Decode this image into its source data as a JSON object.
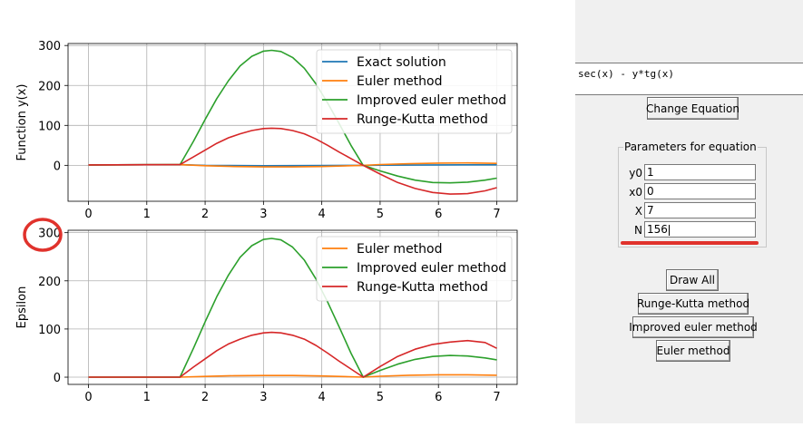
{
  "equation": {
    "text": "sec(x) - y*tg(x)"
  },
  "buttons": {
    "change_equation": "Change Equation",
    "draw_all": "Draw All",
    "runge_kutta": "Runge-Kutta method",
    "improved_euler": "Improved euler method",
    "euler": "Euler method"
  },
  "parameters": {
    "title": "Parameters for equation",
    "fields": [
      {
        "label": "y0",
        "value": "1"
      },
      {
        "label": "x0",
        "value": "0"
      },
      {
        "label": "X",
        "value": "7"
      },
      {
        "label": "N",
        "value": "156"
      }
    ]
  },
  "colors": {
    "exact": "#1f77b4",
    "euler": "#ff7f0e",
    "improved": "#2ca02c",
    "rk": "#d62728",
    "annotation": "#e0322c"
  },
  "chart_data": [
    {
      "type": "line",
      "ylabel": "Function y(x)",
      "xlabel": "",
      "xlim": [
        -0.35,
        7.35
      ],
      "ylim": [
        -90,
        305
      ],
      "xticks": [
        0,
        1,
        2,
        3,
        4,
        5,
        6,
        7
      ],
      "yticks": [
        0,
        100,
        200,
        300
      ],
      "grid": true,
      "legend": "top-right",
      "series": [
        {
          "name": "Exact solution",
          "key": "exact",
          "x": [
            0,
            1,
            1.57,
            2,
            3,
            4,
            4.71,
            5,
            6,
            7
          ],
          "y": [
            1,
            1.4,
            1.6,
            0,
            -1,
            -0.5,
            0,
            0.3,
            1,
            1.2
          ]
        },
        {
          "name": "Euler method",
          "key": "euler",
          "x": [
            0,
            1,
            1.57,
            2,
            2.5,
            3,
            3.5,
            4,
            4.71,
            5,
            5.5,
            6,
            6.5,
            7
          ],
          "y": [
            1,
            1.5,
            1.6,
            -1,
            -3,
            -4,
            -4,
            -3,
            0,
            2,
            4,
            5.5,
            6,
            5
          ]
        },
        {
          "name": "Improved euler method",
          "key": "improved",
          "x": [
            0,
            1,
            1.57,
            1.8,
            2,
            2.2,
            2.4,
            2.6,
            2.8,
            3,
            3.14,
            3.3,
            3.5,
            3.7,
            3.9,
            4.1,
            4.3,
            4.5,
            4.71,
            5,
            5.3,
            5.6,
            5.9,
            6.2,
            6.5,
            6.8,
            7
          ],
          "y": [
            1,
            1.5,
            1.6,
            60,
            115,
            167,
            212,
            249,
            273,
            286,
            288,
            285,
            270,
            243,
            204,
            156,
            104,
            50,
            0,
            -14,
            -27,
            -37,
            -43,
            -44,
            -42,
            -37,
            -32
          ]
        },
        {
          "name": "Runge-Kutta method",
          "key": "rk",
          "x": [
            0,
            1,
            1.57,
            1.8,
            2,
            2.2,
            2.4,
            2.6,
            2.8,
            3,
            3.14,
            3.3,
            3.5,
            3.7,
            3.9,
            4.1,
            4.3,
            4.5,
            4.71,
            5,
            5.3,
            5.6,
            5.9,
            6.2,
            6.5,
            6.8,
            7
          ],
          "y": [
            1,
            1.5,
            1.6,
            21,
            38,
            55,
            69,
            79,
            87,
            92,
            93,
            92,
            87,
            79,
            66,
            50,
            33,
            17,
            0,
            -22,
            -43,
            -58,
            -68,
            -72,
            -71,
            -64,
            -56
          ]
        }
      ]
    },
    {
      "type": "line",
      "ylabel": "Epsilon",
      "xlabel": "",
      "xlim": [
        -0.35,
        7.35
      ],
      "ylim": [
        -15,
        305
      ],
      "xticks": [
        0,
        1,
        2,
        3,
        4,
        5,
        6,
        7
      ],
      "yticks": [
        0,
        100,
        200,
        300
      ],
      "grid": true,
      "legend": "top-right",
      "series": [
        {
          "name": "Euler method",
          "key": "euler",
          "x": [
            0,
            1.57,
            2,
            2.5,
            3,
            3.5,
            4,
            4.71,
            5,
            5.5,
            6,
            6.5,
            7
          ],
          "y": [
            0,
            0,
            1.5,
            3,
            3.5,
            3.5,
            2.5,
            0,
            2,
            4,
            5,
            5,
            4
          ]
        },
        {
          "name": "Improved euler method",
          "key": "improved",
          "x": [
            0,
            1,
            1.57,
            1.8,
            2,
            2.2,
            2.4,
            2.6,
            2.8,
            3,
            3.14,
            3.3,
            3.5,
            3.7,
            3.9,
            4.1,
            4.3,
            4.5,
            4.71,
            5,
            5.3,
            5.6,
            5.9,
            6.2,
            6.5,
            6.8,
            7
          ],
          "y": [
            0,
            0,
            0,
            60,
            115,
            167,
            212,
            249,
            273,
            286,
            288,
            285,
            270,
            243,
            204,
            156,
            104,
            50,
            0,
            14,
            27,
            37,
            43,
            45,
            44,
            40,
            36
          ]
        },
        {
          "name": "Runge-Kutta method",
          "key": "rk",
          "x": [
            0,
            1,
            1.57,
            1.8,
            2,
            2.2,
            2.4,
            2.6,
            2.8,
            3,
            3.14,
            3.3,
            3.5,
            3.7,
            3.9,
            4.1,
            4.3,
            4.5,
            4.71,
            5,
            5.3,
            5.6,
            5.9,
            6.2,
            6.5,
            6.8,
            7
          ],
          "y": [
            0,
            0,
            0,
            21,
            38,
            55,
            69,
            79,
            87,
            92,
            93,
            92,
            87,
            79,
            66,
            50,
            33,
            17,
            0,
            22,
            43,
            58,
            68,
            73,
            76,
            72,
            60
          ]
        }
      ]
    }
  ]
}
